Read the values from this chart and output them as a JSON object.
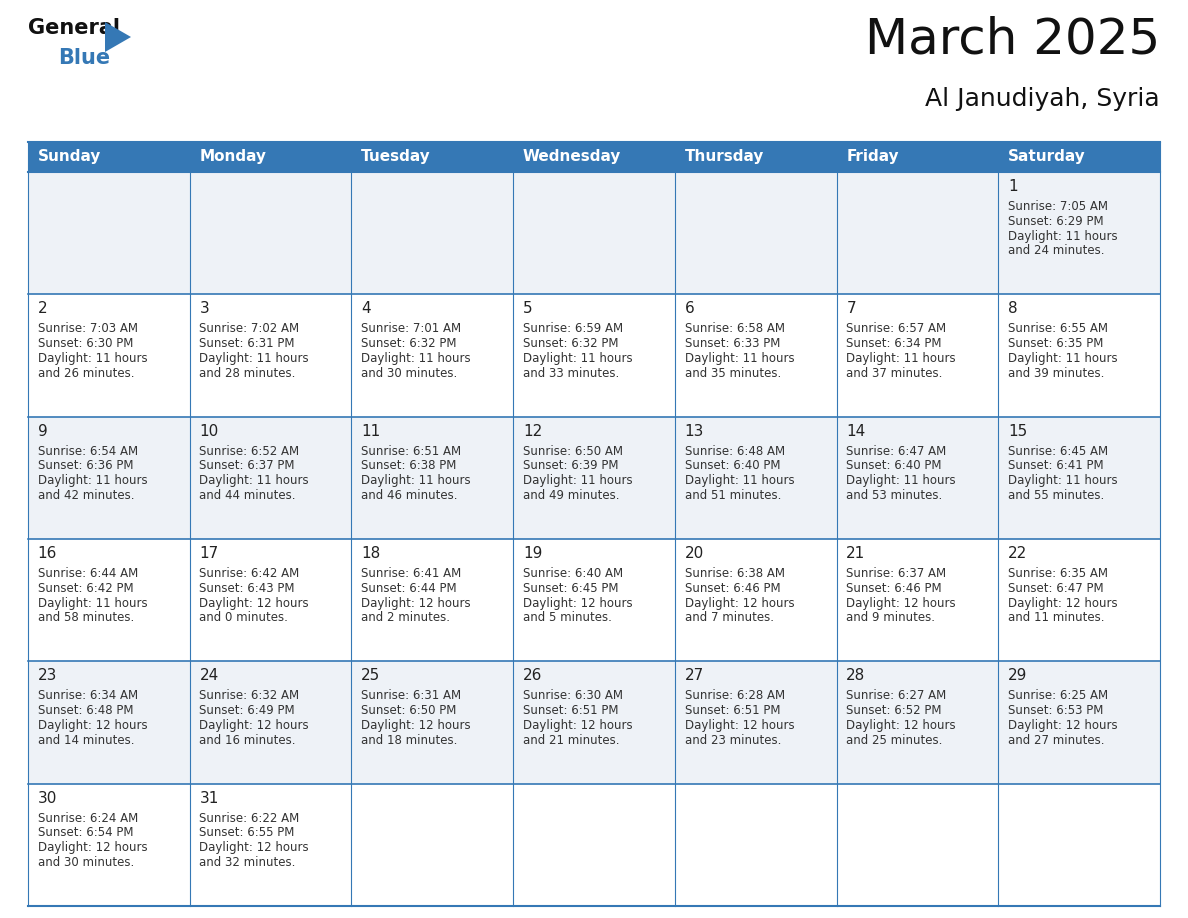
{
  "title": "March 2025",
  "subtitle": "Al Janudiyah, Syria",
  "header_color": "#3578b5",
  "header_text_color": "#ffffff",
  "cell_bg_odd": "#eef2f7",
  "cell_bg_even": "#ffffff",
  "border_color": "#3578b5",
  "text_color": "#333333",
  "day_num_color": "#222222",
  "day_headers": [
    "Sunday",
    "Monday",
    "Tuesday",
    "Wednesday",
    "Thursday",
    "Friday",
    "Saturday"
  ],
  "days": [
    {
      "day": 1,
      "col": 6,
      "row": 0,
      "sunrise": "7:05 AM",
      "sunset": "6:29 PM",
      "dl1": "Daylight: 11 hours",
      "dl2": "and 24 minutes."
    },
    {
      "day": 2,
      "col": 0,
      "row": 1,
      "sunrise": "7:03 AM",
      "sunset": "6:30 PM",
      "dl1": "Daylight: 11 hours",
      "dl2": "and 26 minutes."
    },
    {
      "day": 3,
      "col": 1,
      "row": 1,
      "sunrise": "7:02 AM",
      "sunset": "6:31 PM",
      "dl1": "Daylight: 11 hours",
      "dl2": "and 28 minutes."
    },
    {
      "day": 4,
      "col": 2,
      "row": 1,
      "sunrise": "7:01 AM",
      "sunset": "6:32 PM",
      "dl1": "Daylight: 11 hours",
      "dl2": "and 30 minutes."
    },
    {
      "day": 5,
      "col": 3,
      "row": 1,
      "sunrise": "6:59 AM",
      "sunset": "6:32 PM",
      "dl1": "Daylight: 11 hours",
      "dl2": "and 33 minutes."
    },
    {
      "day": 6,
      "col": 4,
      "row": 1,
      "sunrise": "6:58 AM",
      "sunset": "6:33 PM",
      "dl1": "Daylight: 11 hours",
      "dl2": "and 35 minutes."
    },
    {
      "day": 7,
      "col": 5,
      "row": 1,
      "sunrise": "6:57 AM",
      "sunset": "6:34 PM",
      "dl1": "Daylight: 11 hours",
      "dl2": "and 37 minutes."
    },
    {
      "day": 8,
      "col": 6,
      "row": 1,
      "sunrise": "6:55 AM",
      "sunset": "6:35 PM",
      "dl1": "Daylight: 11 hours",
      "dl2": "and 39 minutes."
    },
    {
      "day": 9,
      "col": 0,
      "row": 2,
      "sunrise": "6:54 AM",
      "sunset": "6:36 PM",
      "dl1": "Daylight: 11 hours",
      "dl2": "and 42 minutes."
    },
    {
      "day": 10,
      "col": 1,
      "row": 2,
      "sunrise": "6:52 AM",
      "sunset": "6:37 PM",
      "dl1": "Daylight: 11 hours",
      "dl2": "and 44 minutes."
    },
    {
      "day": 11,
      "col": 2,
      "row": 2,
      "sunrise": "6:51 AM",
      "sunset": "6:38 PM",
      "dl1": "Daylight: 11 hours",
      "dl2": "and 46 minutes."
    },
    {
      "day": 12,
      "col": 3,
      "row": 2,
      "sunrise": "6:50 AM",
      "sunset": "6:39 PM",
      "dl1": "Daylight: 11 hours",
      "dl2": "and 49 minutes."
    },
    {
      "day": 13,
      "col": 4,
      "row": 2,
      "sunrise": "6:48 AM",
      "sunset": "6:40 PM",
      "dl1": "Daylight: 11 hours",
      "dl2": "and 51 minutes."
    },
    {
      "day": 14,
      "col": 5,
      "row": 2,
      "sunrise": "6:47 AM",
      "sunset": "6:40 PM",
      "dl1": "Daylight: 11 hours",
      "dl2": "and 53 minutes."
    },
    {
      "day": 15,
      "col": 6,
      "row": 2,
      "sunrise": "6:45 AM",
      "sunset": "6:41 PM",
      "dl1": "Daylight: 11 hours",
      "dl2": "and 55 minutes."
    },
    {
      "day": 16,
      "col": 0,
      "row": 3,
      "sunrise": "6:44 AM",
      "sunset": "6:42 PM",
      "dl1": "Daylight: 11 hours",
      "dl2": "and 58 minutes."
    },
    {
      "day": 17,
      "col": 1,
      "row": 3,
      "sunrise": "6:42 AM",
      "sunset": "6:43 PM",
      "dl1": "Daylight: 12 hours",
      "dl2": "and 0 minutes."
    },
    {
      "day": 18,
      "col": 2,
      "row": 3,
      "sunrise": "6:41 AM",
      "sunset": "6:44 PM",
      "dl1": "Daylight: 12 hours",
      "dl2": "and 2 minutes."
    },
    {
      "day": 19,
      "col": 3,
      "row": 3,
      "sunrise": "6:40 AM",
      "sunset": "6:45 PM",
      "dl1": "Daylight: 12 hours",
      "dl2": "and 5 minutes."
    },
    {
      "day": 20,
      "col": 4,
      "row": 3,
      "sunrise": "6:38 AM",
      "sunset": "6:46 PM",
      "dl1": "Daylight: 12 hours",
      "dl2": "and 7 minutes."
    },
    {
      "day": 21,
      "col": 5,
      "row": 3,
      "sunrise": "6:37 AM",
      "sunset": "6:46 PM",
      "dl1": "Daylight: 12 hours",
      "dl2": "and 9 minutes."
    },
    {
      "day": 22,
      "col": 6,
      "row": 3,
      "sunrise": "6:35 AM",
      "sunset": "6:47 PM",
      "dl1": "Daylight: 12 hours",
      "dl2": "and 11 minutes."
    },
    {
      "day": 23,
      "col": 0,
      "row": 4,
      "sunrise": "6:34 AM",
      "sunset": "6:48 PM",
      "dl1": "Daylight: 12 hours",
      "dl2": "and 14 minutes."
    },
    {
      "day": 24,
      "col": 1,
      "row": 4,
      "sunrise": "6:32 AM",
      "sunset": "6:49 PM",
      "dl1": "Daylight: 12 hours",
      "dl2": "and 16 minutes."
    },
    {
      "day": 25,
      "col": 2,
      "row": 4,
      "sunrise": "6:31 AM",
      "sunset": "6:50 PM",
      "dl1": "Daylight: 12 hours",
      "dl2": "and 18 minutes."
    },
    {
      "day": 26,
      "col": 3,
      "row": 4,
      "sunrise": "6:30 AM",
      "sunset": "6:51 PM",
      "dl1": "Daylight: 12 hours",
      "dl2": "and 21 minutes."
    },
    {
      "day": 27,
      "col": 4,
      "row": 4,
      "sunrise": "6:28 AM",
      "sunset": "6:51 PM",
      "dl1": "Daylight: 12 hours",
      "dl2": "and 23 minutes."
    },
    {
      "day": 28,
      "col": 5,
      "row": 4,
      "sunrise": "6:27 AM",
      "sunset": "6:52 PM",
      "dl1": "Daylight: 12 hours",
      "dl2": "and 25 minutes."
    },
    {
      "day": 29,
      "col": 6,
      "row": 4,
      "sunrise": "6:25 AM",
      "sunset": "6:53 PM",
      "dl1": "Daylight: 12 hours",
      "dl2": "and 27 minutes."
    },
    {
      "day": 30,
      "col": 0,
      "row": 5,
      "sunrise": "6:24 AM",
      "sunset": "6:54 PM",
      "dl1": "Daylight: 12 hours",
      "dl2": "and 30 minutes."
    },
    {
      "day": 31,
      "col": 1,
      "row": 5,
      "sunrise": "6:22 AM",
      "sunset": "6:55 PM",
      "dl1": "Daylight: 12 hours",
      "dl2": "and 32 minutes."
    }
  ],
  "num_rows": 6,
  "num_cols": 7,
  "title_fontsize": 36,
  "subtitle_fontsize": 18,
  "header_fontsize": 11,
  "day_num_fontsize": 11,
  "cell_text_fontsize": 8.5
}
